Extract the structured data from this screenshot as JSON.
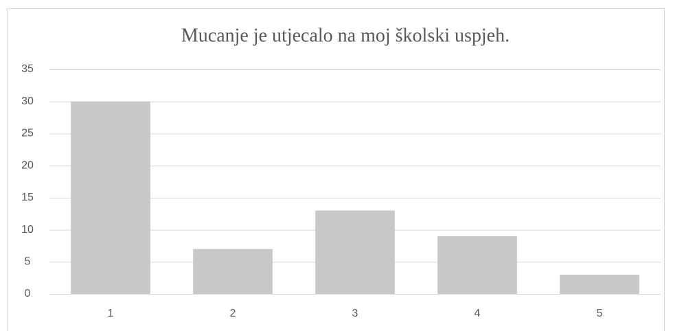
{
  "chart_data": {
    "type": "bar",
    "title": "Mucanje je utjecalo na moj školski uspjeh.",
    "categories": [
      "1",
      "2",
      "3",
      "4",
      "5"
    ],
    "values": [
      30,
      7,
      13,
      9,
      3
    ],
    "color": "#c8c8c8",
    "ylim": [
      0,
      35
    ],
    "yticks": [
      0,
      5,
      10,
      15,
      20,
      25,
      30,
      35
    ],
    "grid": true
  }
}
